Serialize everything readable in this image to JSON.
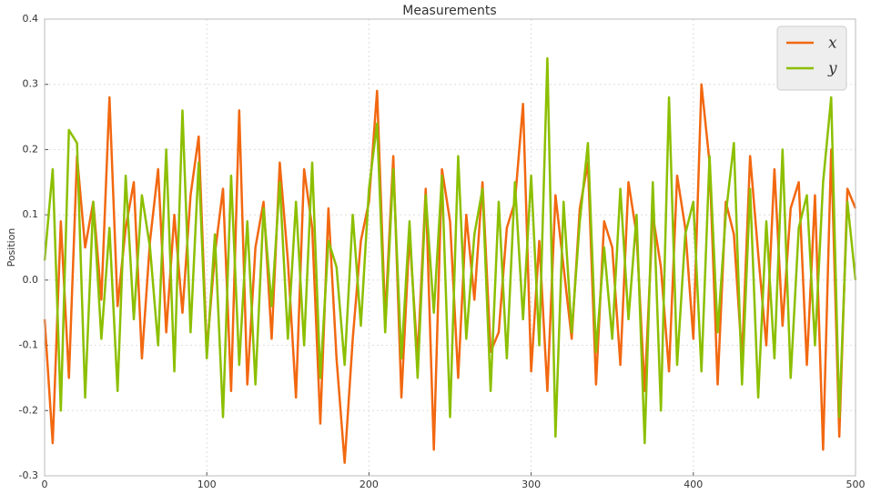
{
  "chart_data": {
    "type": "line",
    "title": "Measurements",
    "y_label": "Position",
    "x": [
      0,
      5,
      10,
      15,
      20,
      25,
      30,
      35,
      40,
      45,
      50,
      55,
      60,
      65,
      70,
      75,
      80,
      85,
      90,
      95,
      100,
      105,
      110,
      115,
      120,
      125,
      130,
      135,
      140,
      145,
      150,
      155,
      160,
      165,
      170,
      175,
      180,
      185,
      190,
      195,
      200,
      205,
      210,
      215,
      220,
      225,
      230,
      235,
      240,
      245,
      250,
      255,
      260,
      265,
      270,
      275,
      280,
      285,
      290,
      295,
      300,
      305,
      310,
      315,
      320,
      325,
      330,
      335,
      340,
      345,
      350,
      355,
      360,
      365,
      370,
      375,
      380,
      385,
      390,
      395,
      400,
      405,
      410,
      415,
      420,
      425,
      430,
      435,
      440,
      445,
      450,
      455,
      460,
      465,
      470,
      475,
      480,
      485,
      490,
      495,
      500
    ],
    "series": [
      {
        "name": "x",
        "color": "#f26810",
        "values": [
          -0.06,
          -0.25,
          0.09,
          -0.15,
          0.19,
          0.05,
          0.12,
          -0.03,
          0.28,
          -0.04,
          0.08,
          0.15,
          -0.12,
          0.06,
          0.17,
          -0.08,
          0.1,
          -0.05,
          0.13,
          0.22,
          -0.11,
          0.04,
          0.14,
          -0.17,
          0.26,
          -0.16,
          0.05,
          0.12,
          -0.09,
          0.18,
          0.03,
          -0.18,
          0.17,
          0.08,
          -0.22,
          0.11,
          -0.12,
          -0.28,
          -0.09,
          0.06,
          0.12,
          0.29,
          -0.06,
          0.19,
          -0.18,
          0.07,
          -0.12,
          0.14,
          -0.26,
          0.17,
          0.09,
          -0.15,
          0.1,
          -0.03,
          0.15,
          -0.11,
          -0.08,
          0.08,
          0.12,
          0.27,
          -0.14,
          0.06,
          -0.17,
          0.13,
          0.02,
          -0.09,
          0.11,
          0.18,
          -0.16,
          0.09,
          0.05,
          -0.13,
          0.15,
          0.07,
          -0.17,
          0.1,
          0.02,
          -0.14,
          0.16,
          0.08,
          -0.09,
          0.3,
          0.18,
          -0.16,
          0.12,
          0.07,
          -0.12,
          0.19,
          0.04,
          -0.1,
          0.17,
          -0.07,
          0.11,
          0.15,
          -0.13,
          0.13,
          -0.26,
          0.2,
          -0.24,
          0.14,
          0.11
        ]
      },
      {
        "name": "y",
        "color": "#8cbf00",
        "values": [
          0.03,
          0.17,
          -0.2,
          0.23,
          0.21,
          -0.18,
          0.12,
          -0.09,
          0.08,
          -0.17,
          0.16,
          -0.06,
          0.13,
          0.05,
          -0.1,
          0.2,
          -0.14,
          0.26,
          -0.08,
          0.18,
          -0.12,
          0.07,
          -0.21,
          0.16,
          -0.13,
          0.09,
          -0.16,
          0.11,
          -0.04,
          0.15,
          -0.09,
          0.12,
          -0.1,
          0.18,
          -0.15,
          0.06,
          0.02,
          -0.13,
          0.1,
          -0.07,
          0.14,
          0.24,
          -0.08,
          0.17,
          -0.12,
          0.09,
          -0.15,
          0.13,
          -0.05,
          0.16,
          -0.21,
          0.19,
          -0.09,
          0.07,
          0.14,
          -0.17,
          0.12,
          -0.12,
          0.15,
          -0.06,
          0.16,
          -0.1,
          0.34,
          -0.24,
          0.12,
          -0.08,
          0.09,
          0.21,
          -0.11,
          0.05,
          -0.09,
          0.14,
          -0.06,
          0.1,
          -0.25,
          0.15,
          -0.2,
          0.28,
          -0.13,
          0.07,
          0.12,
          -0.14,
          0.19,
          -0.08,
          0.1,
          0.21,
          -0.16,
          0.14,
          -0.18,
          0.09,
          -0.12,
          0.2,
          -0.15,
          0.08,
          0.13,
          -0.1,
          0.15,
          0.28,
          -0.21,
          0.12,
          0.0
        ]
      }
    ],
    "xlim": [
      0,
      500
    ],
    "xticks": [
      0,
      100,
      200,
      300,
      400,
      500
    ],
    "ylim": [
      -0.3,
      0.4
    ],
    "yticks": [
      -0.3,
      -0.2,
      -0.1,
      {
        "value": 0,
        "label": "0.0"
      },
      0.1,
      0.2,
      0.3,
      0.4
    ],
    "grid": true,
    "legend": "upper right"
  }
}
